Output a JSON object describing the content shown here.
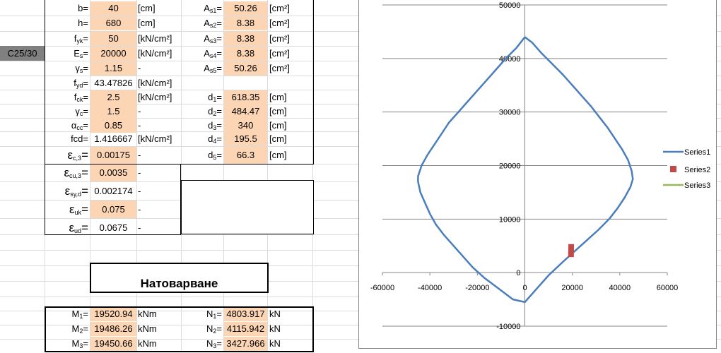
{
  "namebox": "C25/30",
  "params_left": [
    {
      "sym": "b",
      "sub": "",
      "value": "40",
      "unit": "[cm]"
    },
    {
      "sym": "h",
      "sub": "",
      "value": "680",
      "unit": "[cm]"
    },
    {
      "sym": "f",
      "sub": "yk",
      "value": "50",
      "unit": "[kN/cm²]"
    },
    {
      "sym": "E",
      "sub": "s",
      "value": "20000",
      "unit": "[kN/cm²]"
    },
    {
      "sym": "γ",
      "sub": "s",
      "value": "1.15",
      "unit": "-"
    },
    {
      "sym": "f",
      "sub": "yd",
      "value": "43.47826",
      "unit": "[kN/cm²]"
    },
    {
      "sym": "f",
      "sub": "ck",
      "value": "2.5",
      "unit": "[kN/cm²]"
    },
    {
      "sym": "γ",
      "sub": "c",
      "value": "1.5",
      "unit": "-"
    },
    {
      "sym": "α",
      "sub": "cc",
      "value": "0.85",
      "unit": "-"
    },
    {
      "sym": "fcd",
      "sub": "",
      "value": "1.416667",
      "unit": "[kN/cm²]"
    },
    {
      "sym": "ε",
      "sub": "c,3",
      "value": "0.00175",
      "unit": "-"
    },
    {
      "sym": "ε",
      "sub": "cu,3",
      "value": "0.0035",
      "unit": "-"
    },
    {
      "sym": "ε",
      "sub": "sy,d",
      "value": "0.002174",
      "unit": "-"
    },
    {
      "sym": "ε",
      "sub": "uk",
      "value": "0.075",
      "unit": "-"
    },
    {
      "sym": "ε",
      "sub": "ud",
      "value": "0.0675",
      "unit": "-"
    }
  ],
  "params_right": [
    {
      "sym": "A",
      "sub": "s1",
      "value": "50.26",
      "unit": "[cm²]"
    },
    {
      "sym": "A",
      "sub": "s2",
      "value": "8.38",
      "unit": "[cm²]"
    },
    {
      "sym": "A",
      "sub": "s3",
      "value": "8.38",
      "unit": "[cm²]"
    },
    {
      "sym": "A",
      "sub": "s4",
      "value": "8.38",
      "unit": "[cm²]"
    },
    {
      "sym": "A",
      "sub": "s5",
      "value": "50.26",
      "unit": "[cm²]"
    },
    {
      "sym": "d",
      "sub": "1",
      "value": "618.35",
      "unit": "[cm]"
    },
    {
      "sym": "d",
      "sub": "2",
      "value": "484.47",
      "unit": "[cm]"
    },
    {
      "sym": "d",
      "sub": "3",
      "value": "340",
      "unit": "[cm]"
    },
    {
      "sym": "d",
      "sub": "4",
      "value": "195.5",
      "unit": "[cm]"
    },
    {
      "sym": "d",
      "sub": "5",
      "value": "66.3",
      "unit": "[cm]"
    }
  ],
  "section_title": "Натоварване",
  "loads_M": [
    {
      "sym": "M",
      "sub": "1",
      "value": "19520.94",
      "unit": "kNm"
    },
    {
      "sym": "M",
      "sub": "2",
      "value": "19486.26",
      "unit": "kNm"
    },
    {
      "sym": "M",
      "sub": "3",
      "value": "19450.66",
      "unit": "kNm"
    }
  ],
  "loads_N": [
    {
      "sym": "N",
      "sub": "1",
      "value": "4803.917",
      "unit": "kN"
    },
    {
      "sym": "N",
      "sub": "2",
      "value": "4115.942",
      "unit": "kN"
    },
    {
      "sym": "N",
      "sub": "3",
      "value": "3427.966",
      "unit": "kN"
    }
  ],
  "chart_data": {
    "type": "scatter",
    "title": "",
    "xlabel": "",
    "ylabel": "",
    "xlim": [
      -60000,
      60000
    ],
    "ylim": [
      -10000,
      50000
    ],
    "xticks": [
      "-60000",
      "-40000",
      "-20000",
      "0",
      "20000",
      "40000",
      "60000"
    ],
    "yticks": [
      "50000",
      "40000",
      "30000",
      "20000",
      "10000",
      "0",
      "-10000"
    ],
    "grid": "horizontal",
    "legend_position": "right",
    "series": [
      {
        "name": "Series1",
        "style": "line",
        "color": "#4a7ebb",
        "points": [
          [
            0,
            44000
          ],
          [
            -3500,
            42000
          ],
          [
            -8000,
            40000
          ],
          [
            -12000,
            38000
          ],
          [
            -16000,
            36000
          ],
          [
            -20000,
            34000
          ],
          [
            -24000,
            32000
          ],
          [
            -28000,
            30000
          ],
          [
            -32000,
            28000
          ],
          [
            -35000,
            26000
          ],
          [
            -38000,
            24000
          ],
          [
            -41000,
            22000
          ],
          [
            -43500,
            20000
          ],
          [
            -45000,
            18000
          ],
          [
            -45000,
            17000
          ],
          [
            -44000,
            15000
          ],
          [
            -42000,
            13000
          ],
          [
            -40000,
            11000
          ],
          [
            -37500,
            9000
          ],
          [
            -34000,
            7000
          ],
          [
            -30000,
            5000
          ],
          [
            -26000,
            3000
          ],
          [
            -22000,
            1000
          ],
          [
            -17000,
            -1000
          ],
          [
            -11000,
            -3000
          ],
          [
            -5000,
            -5000
          ],
          [
            0,
            -5500
          ],
          [
            5000,
            -3000
          ],
          [
            10000,
            -500
          ],
          [
            16000,
            2000
          ],
          [
            21000,
            4000
          ],
          [
            26000,
            6000
          ],
          [
            31000,
            8000
          ],
          [
            35500,
            10000
          ],
          [
            39000,
            12000
          ],
          [
            42000,
            14000
          ],
          [
            44500,
            16000
          ],
          [
            45500,
            17500
          ],
          [
            45000,
            19000
          ],
          [
            43500,
            21000
          ],
          [
            41000,
            23000
          ],
          [
            38000,
            25000
          ],
          [
            35000,
            27000
          ],
          [
            31500,
            29000
          ],
          [
            28000,
            31000
          ],
          [
            24000,
            33000
          ],
          [
            20000,
            35000
          ],
          [
            16000,
            37000
          ],
          [
            11500,
            39000
          ],
          [
            7000,
            41000
          ],
          [
            3000,
            43000
          ],
          [
            0,
            44000
          ]
        ]
      },
      {
        "name": "Series2",
        "style": "markers",
        "color": "#be4b48",
        "points": [
          [
            19450.66,
            3427.966
          ],
          [
            19486.26,
            4115.942
          ],
          [
            19520.94,
            4803.917
          ]
        ]
      },
      {
        "name": "Series3",
        "style": "line",
        "color": "#98b954",
        "points": []
      }
    ]
  }
}
